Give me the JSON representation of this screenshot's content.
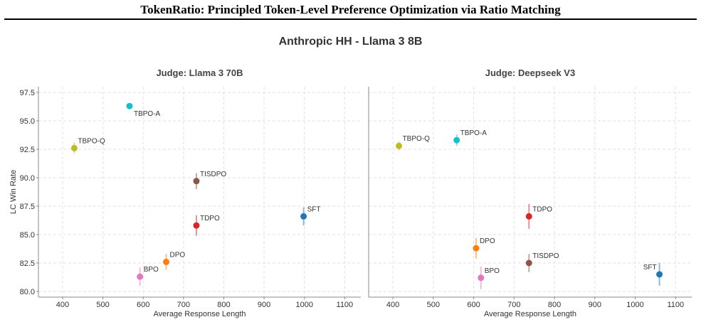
{
  "paper_title": "TokenRatio: Principled Token-Level Preference Optimization via Ratio Matching",
  "chart_title": "Anthropic HH - Llama 3 8B",
  "chart_data": [
    {
      "type": "scatter",
      "title": "Judge: Llama 3 70B",
      "xlabel": "Average Response Length",
      "ylabel": "LC Win Rate",
      "xlim": [
        340,
        1140
      ],
      "ylim": [
        79.5,
        98.0
      ],
      "xticks": [
        "400",
        "500",
        "600",
        "700",
        "800",
        "900",
        "1000",
        "1100"
      ],
      "yticks": [
        "80.0",
        "82.5",
        "85.0",
        "87.5",
        "90.0",
        "92.5",
        "95.0",
        "97.5"
      ],
      "grid": true,
      "points": [
        {
          "name": "TBPO-A",
          "x": 566,
          "y": 96.3,
          "err": 0.2,
          "color": "#17becf",
          "label_pos": "below-right"
        },
        {
          "name": "TBPO-Q",
          "x": 429,
          "y": 92.6,
          "err": 0.5,
          "color": "#bcbd22",
          "label_pos": "above-right"
        },
        {
          "name": "TISDPO",
          "x": 732,
          "y": 89.7,
          "err": 0.7,
          "color": "#8c564b",
          "label_pos": "above-right"
        },
        {
          "name": "SFT",
          "x": 998,
          "y": 86.6,
          "err": 0.8,
          "color": "#1f77b4",
          "label_pos": "above-right"
        },
        {
          "name": "TDPO",
          "x": 732,
          "y": 85.8,
          "err": 0.9,
          "color": "#d62728",
          "label_pos": "above-right"
        },
        {
          "name": "DPO",
          "x": 657,
          "y": 82.6,
          "err": 0.7,
          "color": "#ff7f0e",
          "label_pos": "above-right"
        },
        {
          "name": "BPO",
          "x": 592,
          "y": 81.3,
          "err": 0.8,
          "color": "#e377c2",
          "label_pos": "above-right"
        }
      ]
    },
    {
      "type": "scatter",
      "title": "Judge: Deepseek V3",
      "xlabel": "Average Response Length",
      "ylabel": "",
      "xlim": [
        340,
        1140
      ],
      "ylim": [
        79.5,
        98.0
      ],
      "xticks": [
        "400",
        "500",
        "600",
        "700",
        "800",
        "900",
        "1000",
        "1100"
      ],
      "yticks": [],
      "grid": true,
      "points": [
        {
          "name": "TBPO-Q",
          "x": 415,
          "y": 92.8,
          "err": 0.4,
          "color": "#bcbd22",
          "label_pos": "above-right"
        },
        {
          "name": "TBPO-A",
          "x": 558,
          "y": 93.3,
          "err": 0.5,
          "color": "#17becf",
          "label_pos": "above-right"
        },
        {
          "name": "TDPO",
          "x": 737,
          "y": 86.6,
          "err": 1.1,
          "color": "#d62728",
          "label_pos": "above-right"
        },
        {
          "name": "DPO",
          "x": 606,
          "y": 83.8,
          "err": 0.9,
          "color": "#ff7f0e",
          "label_pos": "above-right"
        },
        {
          "name": "TISDPO",
          "x": 737,
          "y": 82.5,
          "err": 0.8,
          "color": "#8c564b",
          "label_pos": "above-right"
        },
        {
          "name": "BPO",
          "x": 618,
          "y": 81.2,
          "err": 1.0,
          "color": "#e377c2",
          "label_pos": "above-right"
        },
        {
          "name": "SFT",
          "x": 1060,
          "y": 81.5,
          "err": 1.0,
          "color": "#1f77b4",
          "label_pos": "above-left"
        }
      ]
    }
  ]
}
